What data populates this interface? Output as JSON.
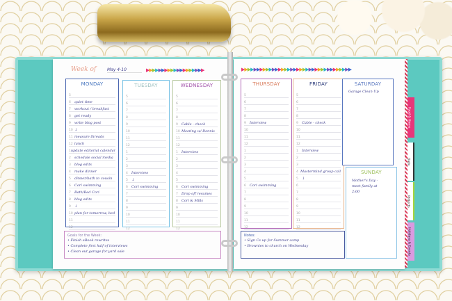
{
  "colors": {
    "binder": "#5cc9c0",
    "monday": "#4a66b0",
    "tuesday": "#7cc4e6",
    "wednesday": "#b8c9a0",
    "thursday": "#b167b7",
    "friday": "#e8b48c",
    "saturday": "#5a78c0",
    "sunday": "#8cc4e6"
  },
  "header": {
    "week_label": "Week of",
    "dates": "May 4-10"
  },
  "hours": [
    "5",
    "6",
    "7",
    "8",
    "9",
    "10",
    "11",
    "12",
    "1",
    "2",
    "3",
    "4",
    "5",
    "6",
    "7",
    "8",
    "9",
    "10",
    "11",
    "12"
  ],
  "days": [
    {
      "name": "MONDAY",
      "entries": [
        "",
        "quiet time",
        "workout / breakfast",
        "get ready",
        "write blog post",
        "↓",
        "measure threads",
        "lunch",
        "update editorial calendar",
        "schedule social media",
        "blog edits",
        "make dinner",
        "dinner/bath to cousin",
        "Cori swimming",
        "Bath/Bed Cori",
        "blog edits",
        "↓",
        "plan for tomorrow, bed",
        "",
        ""
      ]
    },
    {
      "name": "TUESDAY",
      "entries": [
        "",
        "",
        "",
        "",
        "",
        "",
        "",
        "",
        "",
        "",
        "",
        "Interview",
        "↓",
        "Cori swimming",
        "",
        "",
        "",
        "",
        "",
        ""
      ]
    },
    {
      "name": "WEDNESDAY",
      "entries": [
        "",
        "",
        "",
        "",
        "Cable - check",
        "Meeting w/ Dennis",
        "",
        "",
        "Interview",
        "",
        "",
        "",
        "",
        "Cori swimming",
        "Drop off resumes",
        "Cori & Mills",
        "",
        "",
        "",
        ""
      ]
    },
    {
      "name": "THURSDAY",
      "entries": [
        "",
        "",
        "",
        "",
        "Interview",
        "",
        "",
        "",
        "",
        "",
        "",
        "",
        "",
        "Cori swimming",
        "",
        "",
        "",
        "",
        "",
        ""
      ]
    },
    {
      "name": "FRIDAY",
      "entries": [
        "",
        "",
        "",
        "",
        "Cable - check",
        "",
        "",
        "",
        "Interview",
        "",
        "",
        "Mastermind group call",
        "↓",
        "",
        "",
        "",
        "",
        "",
        "",
        ""
      ]
    }
  ],
  "saturday": {
    "name": "SATURDAY",
    "lines": [
      "Garage Clean Up"
    ]
  },
  "sunday": {
    "name": "SUNDAY",
    "lines": [
      "Mother's Day -",
      "meet family at",
      "2:00"
    ]
  },
  "goals": {
    "title": "Goals for the Week:",
    "items": [
      "• Finish eBook rewrites",
      "• Complete first half of interviews",
      "• Clean out garage for yard sale"
    ]
  },
  "notes": {
    "title": "Notes:",
    "items": [
      "• Sign Cs up for Summer camp",
      "• Brownies to church on Wednesday"
    ]
  },
  "tabs": [
    "Food & Home",
    "Daily",
    "Projects",
    "Holidays & Events"
  ]
}
